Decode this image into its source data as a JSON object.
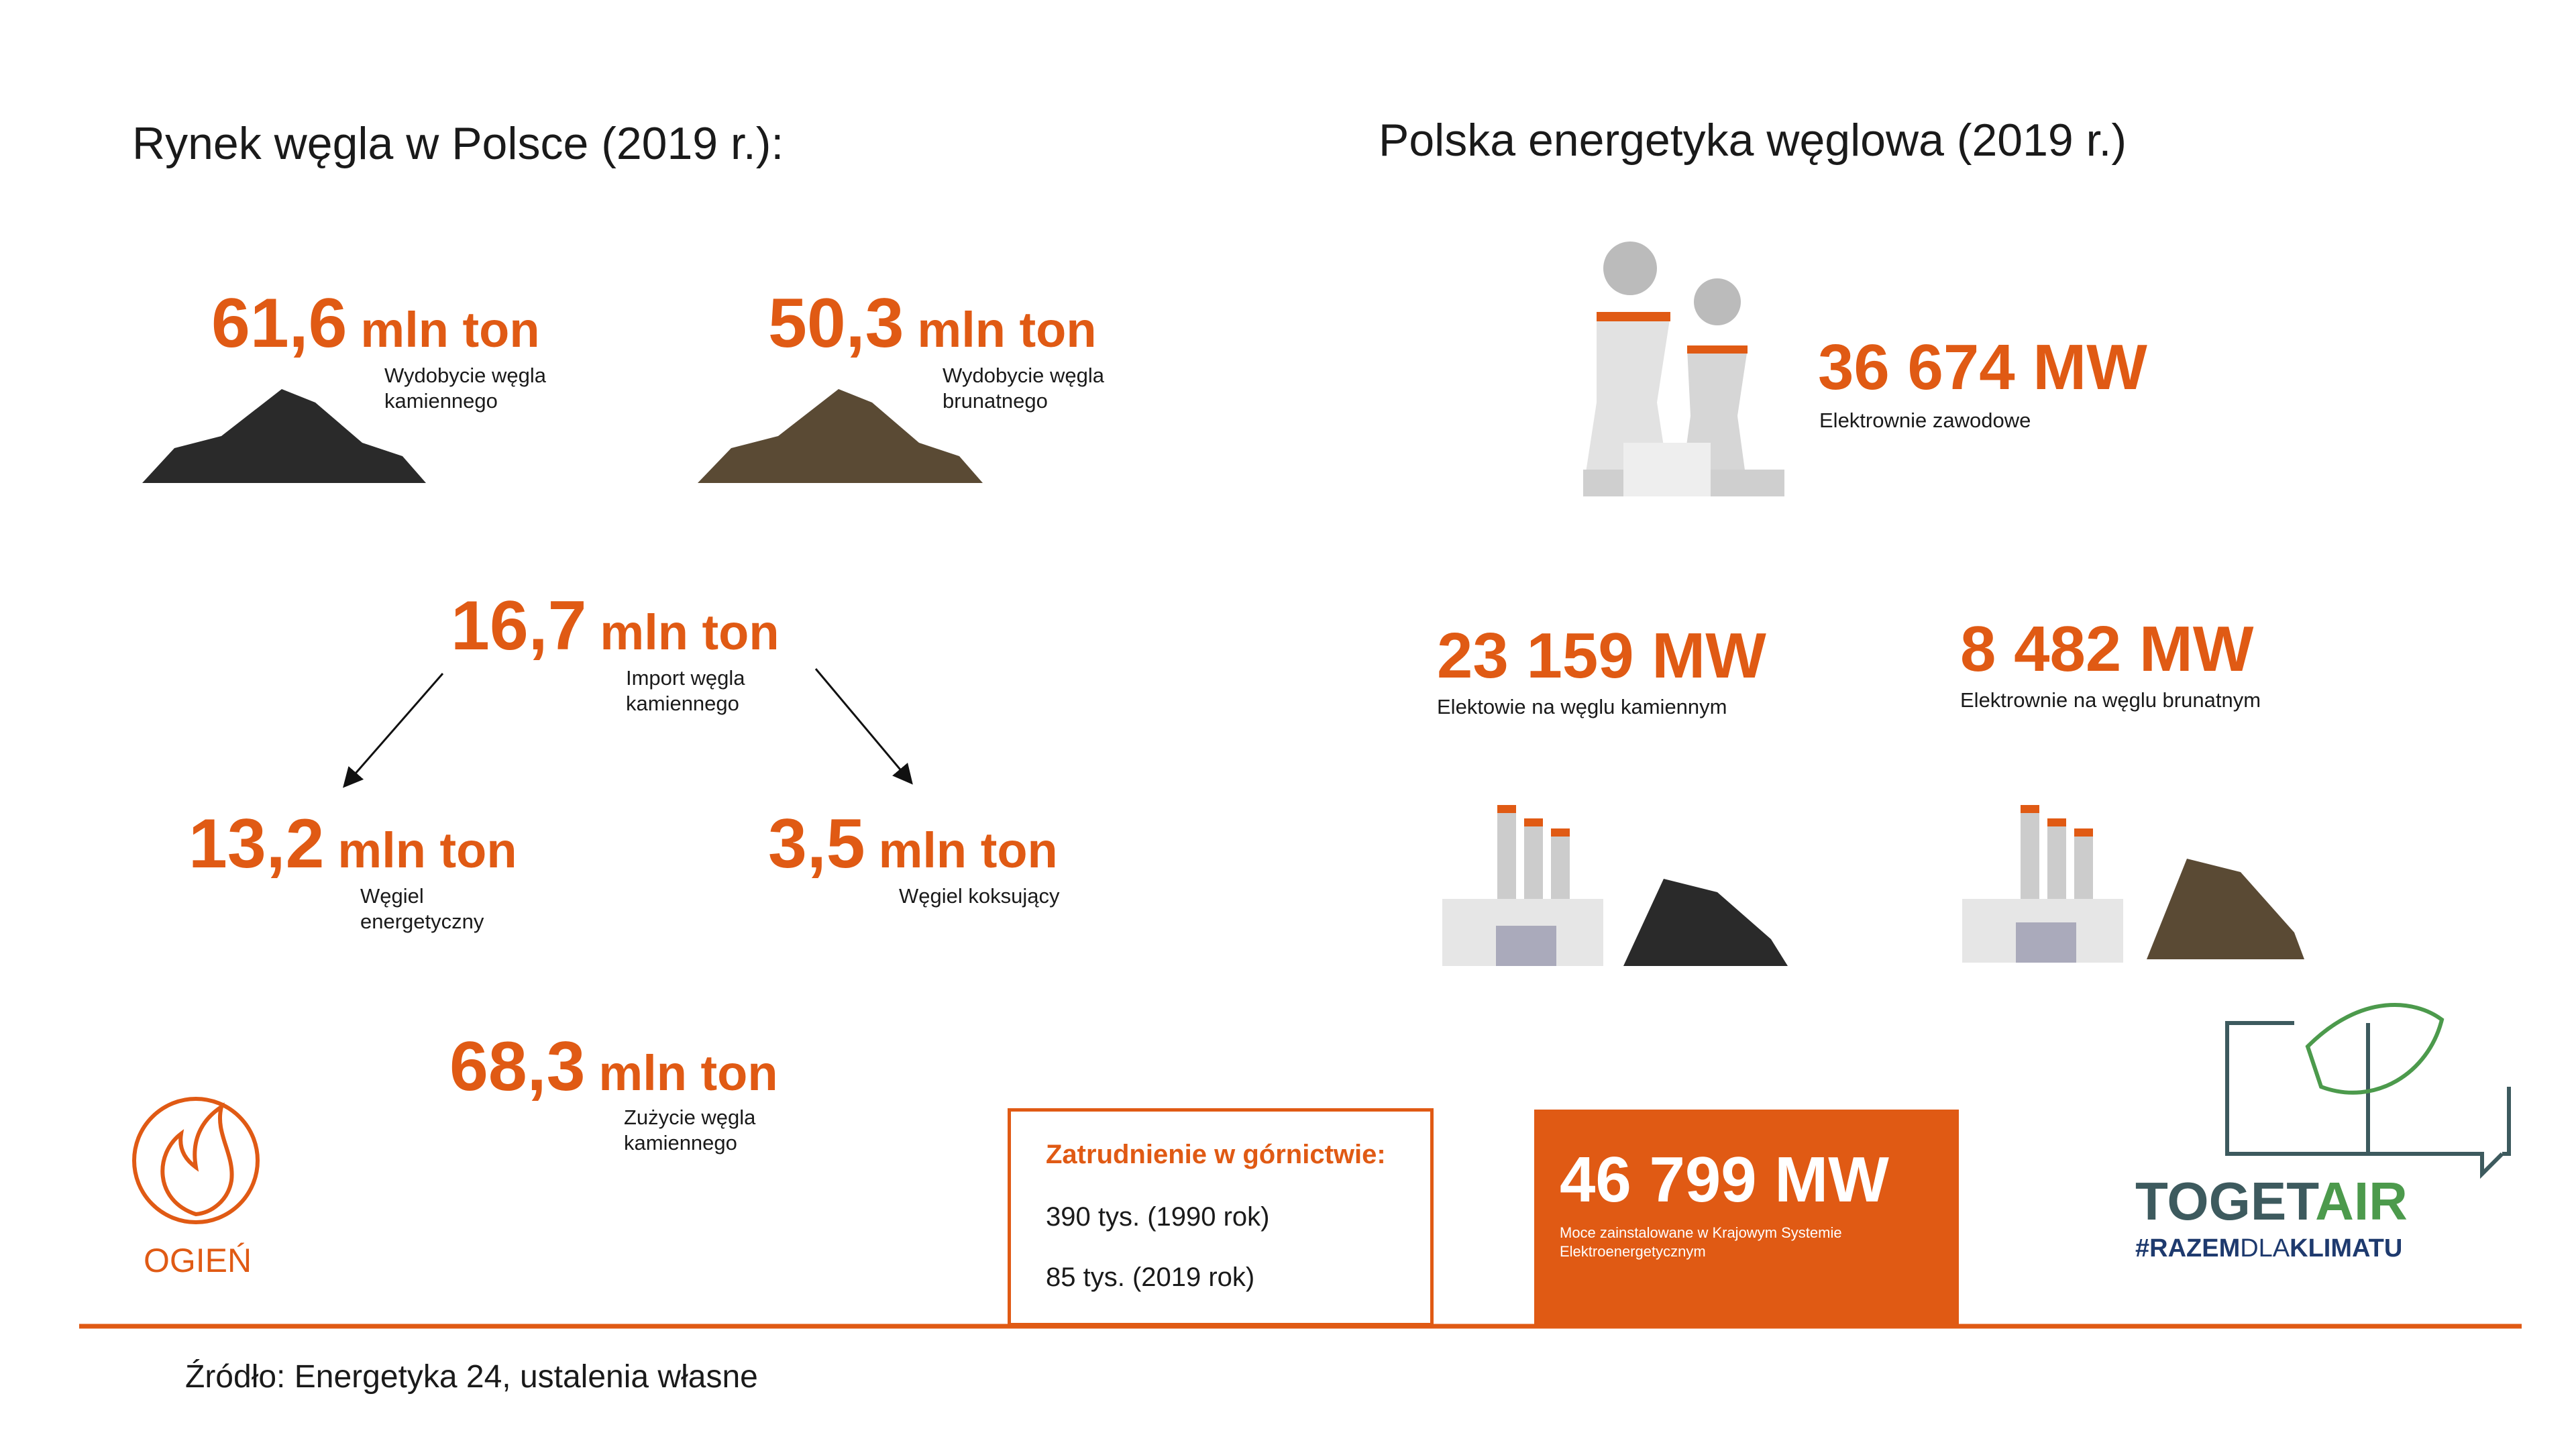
{
  "left": {
    "title": "Rynek węgla w Polsce (2019 r.):",
    "stats": [
      {
        "value": "61,6",
        "unit": "mln ton",
        "label": "Wydobycie węgla kamiennego"
      },
      {
        "value": "50,3",
        "unit": "mln ton",
        "label": "Wydobycie węgla brunatnego"
      },
      {
        "value": "16,7",
        "unit": "mln ton",
        "label": "Import węgla kamiennego"
      },
      {
        "value": "13,2",
        "unit": "mln ton",
        "label": "Węgiel energetyczny"
      },
      {
        "value": "3,5",
        "unit": "mln ton",
        "label": "Węgiel koksujący"
      },
      {
        "value": "68,3",
        "unit": "mln ton",
        "label": "Zużycie węgla kamiennego"
      }
    ]
  },
  "right": {
    "title": "Polska energetyka węglowa (2019 r.)",
    "stats": [
      {
        "value": "36 674 MW",
        "label": "Elektrownie zawodowe"
      },
      {
        "value": "23 159 MW",
        "label": "Elektowie na węglu kamiennym"
      },
      {
        "value": "8 482 MW",
        "label": "Elektrownie na węglu brunatnym"
      }
    ]
  },
  "employment": {
    "title": "Zatrudnienie w górnictwie:",
    "lines": [
      "390 tys. (1990 rok)",
      "85 tys. (2019 rok)"
    ]
  },
  "capacity": {
    "value": "46 799 MW",
    "label": "Moce zainstalowane w Krajowym Systemie Elektroenergetycznym"
  },
  "logos": {
    "ogien": "OGIEŃ",
    "togetair": [
      "TOGET",
      "AIR"
    ],
    "hashtag": [
      "#RAZEM",
      "DLA",
      "KLIMATU"
    ]
  },
  "source": "Źródło: Energetyka 24, ustalenia własne"
}
